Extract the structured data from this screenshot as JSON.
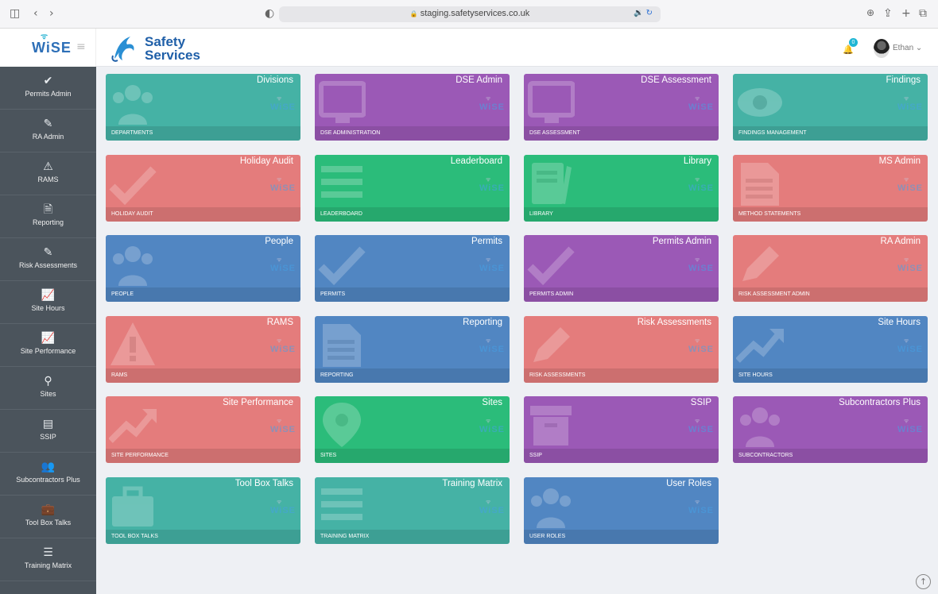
{
  "browser": {
    "url": "staging.safetyservices.co.uk",
    "lock_icon": "🔒",
    "sidebar_toggle": "◫",
    "back": "‹",
    "forward": "›",
    "shield": "◐",
    "audio": "🔉 ↻",
    "download": "⊕",
    "share": "⇪",
    "new_tab": "+",
    "tabs": "⧉"
  },
  "header": {
    "app_logo": "WiSE",
    "company_name_line1": "Safety",
    "company_name_line2": "Services",
    "notification_count": "0",
    "user_name": "Ethan ⌄"
  },
  "sidebar": {
    "items": [
      {
        "label": "Permits Admin",
        "icon": "check-icon",
        "glyph": "✔"
      },
      {
        "label": "RA Admin",
        "icon": "pencil-icon",
        "glyph": "✎"
      },
      {
        "label": "RAMS",
        "icon": "warning-icon",
        "glyph": "⚠"
      },
      {
        "label": "Reporting",
        "icon": "document-icon",
        "glyph": "🗎"
      },
      {
        "label": "Risk Assessments",
        "icon": "pencil-icon",
        "glyph": "✎"
      },
      {
        "label": "Site Hours",
        "icon": "trend-icon",
        "glyph": "📈"
      },
      {
        "label": "Site Performance",
        "icon": "trend-icon",
        "glyph": "📈"
      },
      {
        "label": "Sites",
        "icon": "map-marker-icon",
        "glyph": "⚲"
      },
      {
        "label": "SSIP",
        "icon": "archive-icon",
        "glyph": "▤"
      },
      {
        "label": "Subcontractors Plus",
        "icon": "users-icon",
        "glyph": "👥"
      },
      {
        "label": "Tool Box Talks",
        "icon": "briefcase-icon",
        "glyph": "💼"
      },
      {
        "label": "Training Matrix",
        "icon": "list-icon",
        "glyph": "☰"
      }
    ]
  },
  "tiles": [
    {
      "title": "Divisions",
      "sub": "DEPARTMENTS",
      "color": "#45b2a5",
      "icon": "users-icon"
    },
    {
      "title": "DSE Admin",
      "sub": "DSE ADMINISTRATION",
      "color": "#9b59b6",
      "icon": "monitor-icon"
    },
    {
      "title": "DSE Assessment",
      "sub": "DSE ASSESSMENT",
      "color": "#9b59b6",
      "icon": "monitor-icon"
    },
    {
      "title": "Findings",
      "sub": "FINDINGS MANAGEMENT",
      "color": "#45b2a5",
      "icon": "eye-icon"
    },
    {
      "title": "Holiday Audit",
      "sub": "HOLIDAY AUDIT",
      "color": "#e47c7c",
      "icon": "check-icon"
    },
    {
      "title": "Leaderboard",
      "sub": "LEADERBOARD",
      "color": "#2bbc7a",
      "icon": "list-icon"
    },
    {
      "title": "Library",
      "sub": "LIBRARY",
      "color": "#2bbc7a",
      "icon": "book-icon"
    },
    {
      "title": "MS Admin",
      "sub": "METHOD STATEMENTS",
      "color": "#e47c7c",
      "icon": "document-icon"
    },
    {
      "title": "People",
      "sub": "PEOPLE",
      "color": "#5186c2",
      "icon": "users-icon"
    },
    {
      "title": "Permits",
      "sub": "PERMITS",
      "color": "#5186c2",
      "icon": "check-icon"
    },
    {
      "title": "Permits Admin",
      "sub": "PERMITS ADMIN",
      "color": "#9b59b6",
      "icon": "check-icon"
    },
    {
      "title": "RA Admin",
      "sub": "RISK ASSESSMENT ADMIN",
      "color": "#e47c7c",
      "icon": "pencil-icon"
    },
    {
      "title": "RAMS",
      "sub": "RAMS",
      "color": "#e47c7c",
      "icon": "warning-icon"
    },
    {
      "title": "Reporting",
      "sub": "REPORTING",
      "color": "#5186c2",
      "icon": "document-icon"
    },
    {
      "title": "Risk Assessments",
      "sub": "RISK ASSESSMENTS",
      "color": "#e47c7c",
      "icon": "pencil-icon"
    },
    {
      "title": "Site Hours",
      "sub": "SITE HOURS",
      "color": "#5186c2",
      "icon": "trend-icon"
    },
    {
      "title": "Site Performance",
      "sub": "SITE PERFORMANCE",
      "color": "#e47c7c",
      "icon": "trend-icon"
    },
    {
      "title": "Sites",
      "sub": "SITES",
      "color": "#2bbc7a",
      "icon": "map-marker-icon"
    },
    {
      "title": "SSIP",
      "sub": "SSIP",
      "color": "#9b59b6",
      "icon": "archive-icon"
    },
    {
      "title": "Subcontractors Plus",
      "sub": "SUBCONTRACTORS",
      "color": "#9b59b6",
      "icon": "users-icon"
    },
    {
      "title": "Tool Box Talks",
      "sub": "TOOL BOX TALKS",
      "color": "#45b2a5",
      "icon": "briefcase-icon"
    },
    {
      "title": "Training Matrix",
      "sub": "TRAINING MATRIX",
      "color": "#45b2a5",
      "icon": "list-icon"
    },
    {
      "title": "User Roles",
      "sub": "USER ROLES",
      "color": "#5186c2",
      "icon": "users-icon"
    }
  ],
  "tile_brand": "WiSE",
  "scroll_top_glyph": "↑"
}
